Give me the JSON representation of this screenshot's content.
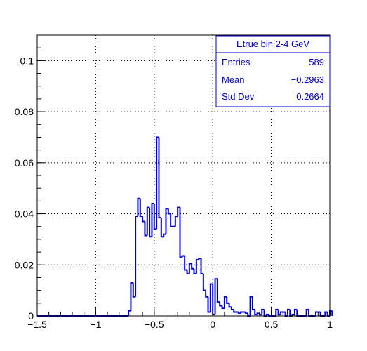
{
  "chart_data": {
    "type": "histogram",
    "title": "",
    "xlabel": "",
    "ylabel": "",
    "xlim": [
      -1.5,
      1.0
    ],
    "ylim": [
      0,
      0.11
    ],
    "x_ticks": [
      "-1.5",
      "-1",
      "-0.5",
      "0",
      "0.5",
      "1"
    ],
    "x_tick_values": [
      -1.5,
      -1.0,
      -0.5,
      0.0,
      0.5,
      1.0
    ],
    "y_ticks": [
      "0",
      "0.02",
      "0.04",
      "0.06",
      "0.08",
      "0.1"
    ],
    "y_tick_values": [
      0,
      0.02,
      0.04,
      0.06,
      0.08,
      0.1
    ],
    "grid": true,
    "line_color": "#0000cc",
    "bin_width": 0.02,
    "x_start": -1.5,
    "values": [
      0,
      0,
      0,
      0,
      0,
      0,
      0,
      0,
      0,
      0,
      0,
      0,
      0,
      0,
      0,
      0,
      0,
      0,
      0,
      0,
      0,
      0,
      0,
      0,
      0,
      0,
      0,
      0,
      0,
      0,
      0,
      0,
      0,
      0,
      0,
      0,
      0,
      0,
      0,
      0.002,
      0.013,
      0.0075,
      0.039,
      0.046,
      0.039,
      0.037,
      0.0315,
      0.0425,
      0.031,
      0.044,
      0.034,
      0.07,
      0.0385,
      0.031,
      0.032,
      0.042,
      0.04,
      0.035,
      0.035,
      0.039,
      0.0425,
      0.023,
      0.0235,
      0.018,
      0.0165,
      0.0205,
      0.0185,
      0.0165,
      0.022,
      0.0225,
      0.0165,
      0.01,
      0.0075,
      0.0015,
      0.0125,
      0.0005,
      0.0145,
      0.0055,
      0.004,
      0.003,
      0.0075,
      0.005,
      0.0035,
      0.0025,
      0.0015,
      0.0015,
      0.001,
      0.0015,
      0.0015,
      0.001,
      0,
      0.0075,
      0.0025,
      0.0005,
      0.001,
      0.0005,
      0.0025,
      0,
      0.0005,
      0,
      0,
      0,
      0.0025,
      0.0005,
      0.0015,
      0.0015,
      0,
      0.0025,
      0,
      0.0005,
      0.0025,
      0,
      0,
      0,
      0,
      0.0025,
      0,
      0,
      0,
      0.0015,
      0.0015,
      0,
      0,
      0.0015,
      0,
      0.002
    ],
    "stats_box": {
      "title": "Etrue bin 2-4 GeV",
      "rows": [
        {
          "label": "Entries",
          "value": "589"
        },
        {
          "label": "Mean",
          "value": "−0.2963"
        },
        {
          "label": "Std Dev",
          "value": "0.2664"
        }
      ]
    }
  }
}
